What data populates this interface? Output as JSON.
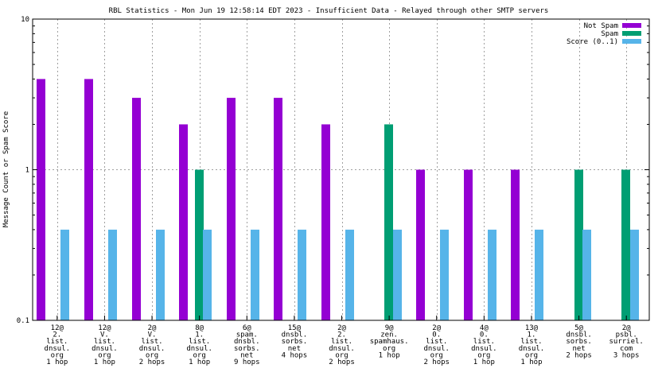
{
  "chart_data": {
    "type": "bar",
    "title": "RBL Statistics - Mon Jun 19 12:58:14 EDT 2023 - Insufficient Data - Relayed through other SMTP servers",
    "xlabel": "",
    "ylabel": "Message Count or Spam Score",
    "yscale": "log",
    "ylim": [
      0.1,
      10
    ],
    "yticks": [
      {
        "value": 10,
        "label": "10"
      },
      {
        "value": 1,
        "label": "1"
      },
      {
        "value": 0.1,
        "label": "0.1"
      }
    ],
    "grid": true,
    "legend_position": "top-right",
    "categories": [
      [
        "12@",
        "2.",
        "list.",
        "dnsul.",
        "org",
        "1 hop"
      ],
      [
        "12@",
        "V.",
        "list.",
        "dnsul.",
        "org",
        "1 hop"
      ],
      [
        "2@",
        "V.",
        "list.",
        "dnsul.",
        "org",
        "2 hops"
      ],
      [
        "8@",
        "1.",
        "list.",
        "dnsul.",
        "org",
        "1 hop"
      ],
      [
        "6@",
        "spam.",
        "dnsbl.",
        "sorbs.",
        "net",
        "9 hops"
      ],
      [
        "15@",
        "dnsbl.",
        "sorbs.",
        "net",
        "4 hops"
      ],
      [
        "2@",
        "2.",
        "list.",
        "dnsul.",
        "org",
        "2 hops"
      ],
      [
        "9@",
        "zen.",
        "spamhaus.",
        "org",
        "1 hop"
      ],
      [
        "2@",
        "0.",
        "list.",
        "dnsul.",
        "org",
        "2 hops"
      ],
      [
        "4@",
        "0.",
        "list.",
        "dnsul.",
        "org",
        "1 hop"
      ],
      [
        "13@",
        "1.",
        "list.",
        "dnsul.",
        "org",
        "1 hop"
      ],
      [
        "5@",
        "dnsbl.",
        "sorbs.",
        "net",
        "2 hops"
      ],
      [
        "2@",
        "psbl.",
        "surriel.",
        "com",
        "3 hops"
      ]
    ],
    "series": [
      {
        "name": "Not Spam",
        "color": "#9400d3",
        "values": [
          4,
          4,
          3,
          2,
          3,
          3,
          2,
          null,
          1,
          1,
          1,
          null,
          null
        ]
      },
      {
        "name": "Spam",
        "color": "#009e73",
        "values": [
          null,
          null,
          null,
          1,
          null,
          null,
          null,
          2,
          null,
          null,
          null,
          1,
          1
        ]
      },
      {
        "name": "Score (0..1)",
        "color": "#56b4e9",
        "values": [
          0.4,
          0.4,
          0.4,
          0.4,
          0.4,
          0.4,
          0.4,
          0.4,
          0.4,
          0.4,
          0.4,
          0.4,
          0.4
        ]
      }
    ]
  }
}
